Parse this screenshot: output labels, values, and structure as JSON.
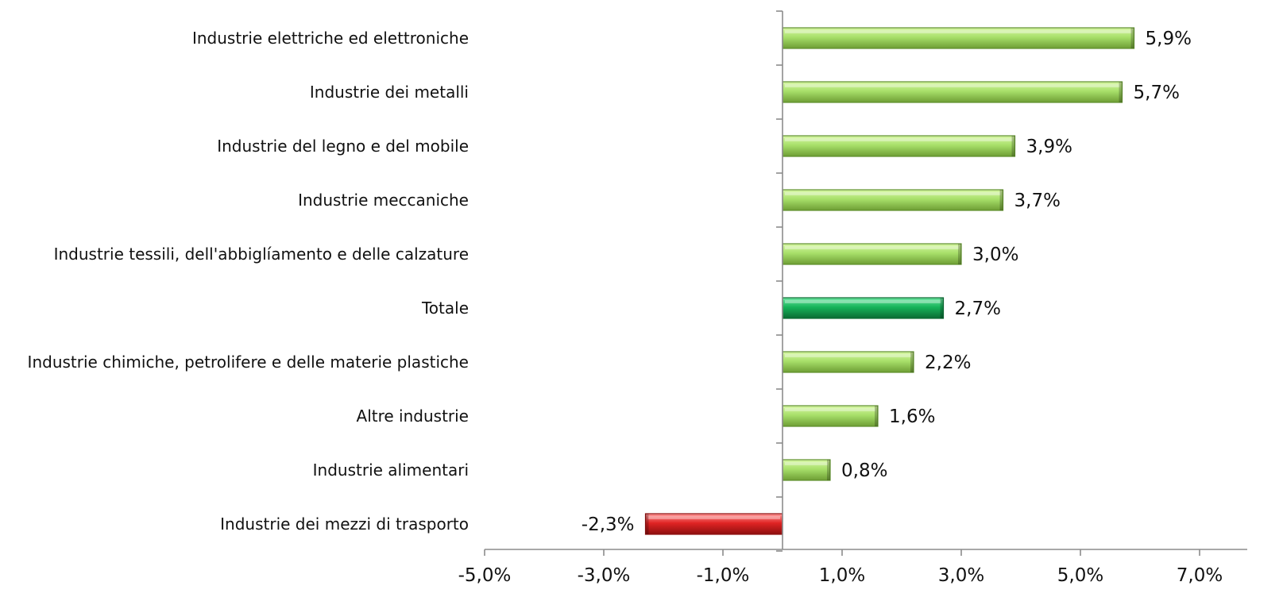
{
  "chart_data": {
    "type": "bar",
    "orientation": "horizontal",
    "categories": [
      "Industrie elettriche ed elettroniche",
      "Industrie dei metalli",
      "Industrie del legno e del mobile",
      "Industrie meccaniche",
      "Industrie tessili, dell'abbiglíamento e delle calzature",
      "Totale",
      "Industrie chimiche, petrolifere e delle materie plastiche",
      "Altre industrie",
      "Industrie alimentari",
      "Industrie dei mezzi di trasporto"
    ],
    "values": [
      5.9,
      5.7,
      3.9,
      3.7,
      3.0,
      2.7,
      2.2,
      1.6,
      0.8,
      -2.3
    ],
    "value_labels": [
      "5,9%",
      "5,7%",
      "3,9%",
      "3,7%",
      "3,0%",
      "2,7%",
      "2,2%",
      "1,6%",
      "0,8%",
      "-2,3%"
    ],
    "bar_kinds": [
      "sector",
      "sector",
      "sector",
      "sector",
      "sector",
      "total",
      "sector",
      "sector",
      "sector",
      "negative"
    ],
    "colors": {
      "positive": "#92d050",
      "positive_dark": "#5e8f2c",
      "positive_light": "#c8f090",
      "total": "#12a14f",
      "total_dark": "#0a6b33",
      "total_light": "#5fdc95",
      "negative": "#d92020",
      "negative_dark": "#8e0f0f",
      "negative_light": "#ff8a8a",
      "axis": "#8c8c8c"
    },
    "xlim": [
      -5.0,
      7.0
    ],
    "x_ticks": [
      -5.0,
      -3.0,
      -1.0,
      1.0,
      3.0,
      5.0,
      7.0
    ],
    "x_tick_labels": [
      "-5,0%",
      "-3,0%",
      "-1,0%",
      "1,0%",
      "3,0%",
      "5,0%",
      "7,0%"
    ],
    "title": "",
    "xlabel": "",
    "ylabel": "",
    "grid": false,
    "legend": "none"
  }
}
